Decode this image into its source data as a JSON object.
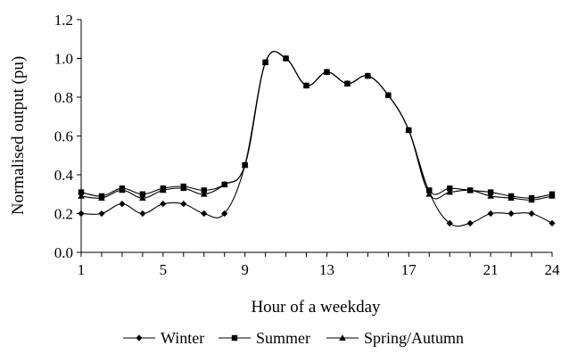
{
  "chart_data": {
    "type": "line",
    "title": "",
    "xlabel": "Hour of a weekday",
    "ylabel": "Normalised output (pu)",
    "xlim": [
      1,
      24
    ],
    "ylim": [
      0,
      1.2
    ],
    "x_ticks": [
      1,
      5,
      9,
      13,
      17,
      21,
      24
    ],
    "y_ticks": [
      "0.0",
      "0.2",
      "0.4",
      "0.6",
      "0.8",
      "1.0",
      "1.2"
    ],
    "grid": false,
    "legend_position": "bottom",
    "x": [
      1,
      2,
      3,
      4,
      5,
      6,
      7,
      8,
      9,
      10,
      11,
      12,
      13,
      14,
      15,
      16,
      17,
      18,
      19,
      20,
      21,
      22,
      23,
      24
    ],
    "series": [
      {
        "name": "Winter",
        "marker": "diamond",
        "values": [
          0.2,
          0.2,
          0.25,
          0.2,
          0.25,
          0.25,
          0.2,
          0.2,
          0.45,
          0.98,
          1.0,
          0.86,
          0.93,
          0.87,
          0.91,
          0.81,
          0.63,
          0.31,
          0.15,
          0.15,
          0.2,
          0.2,
          0.2,
          0.15
        ]
      },
      {
        "name": "Summer",
        "marker": "square",
        "values": [
          0.31,
          0.29,
          0.33,
          0.3,
          0.33,
          0.34,
          0.32,
          0.35,
          0.45,
          0.98,
          1.0,
          0.86,
          0.93,
          0.87,
          0.91,
          0.81,
          0.63,
          0.32,
          0.33,
          0.32,
          0.31,
          0.29,
          0.28,
          0.3
        ]
      },
      {
        "name": "Spring/Autumn",
        "marker": "triangle",
        "values": [
          0.29,
          0.28,
          0.32,
          0.28,
          0.32,
          0.33,
          0.3,
          0.35,
          0.45,
          0.98,
          1.0,
          0.86,
          0.93,
          0.87,
          0.91,
          0.81,
          0.63,
          0.3,
          0.31,
          0.32,
          0.29,
          0.28,
          0.27,
          0.29
        ]
      }
    ],
    "colors": {
      "line": "#000000",
      "background": "#ffffff"
    }
  }
}
